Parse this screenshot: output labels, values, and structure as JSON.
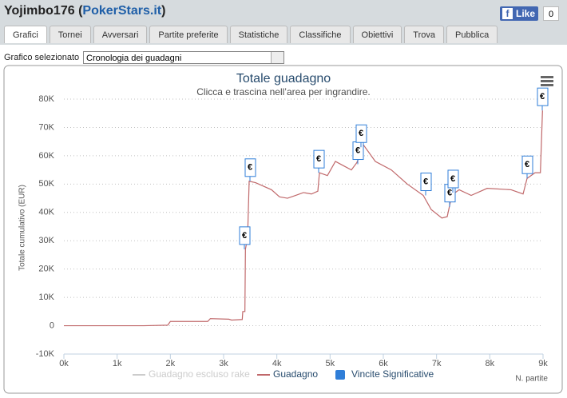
{
  "header": {
    "user": "Yojimbo176",
    "site": "PokerStars.it",
    "like": "Like",
    "like_count": "0"
  },
  "tabs": [
    "Grafici",
    "Tornei",
    "Avversari",
    "Partite preferite",
    "Statistiche",
    "Classifiche",
    "Obiettivi",
    "Trova",
    "Pubblica"
  ],
  "selector": {
    "label": "Grafico selezionato",
    "value": "Cronologia dei guadagni"
  },
  "chart_data": {
    "type": "line",
    "title": "Totale guadagno",
    "subtitle": "Clicca e trascina nell’area per ingrandire.",
    "y_label": "Totale cumulativo (EUR)",
    "x_label": "N. partite",
    "grid": true,
    "xlim": [
      0,
      9000
    ],
    "xticks": [
      {
        "value": 0,
        "label": "0k"
      },
      {
        "value": 1000,
        "label": "1k"
      },
      {
        "value": 2000,
        "label": "2k"
      },
      {
        "value": 3000,
        "label": "3k"
      },
      {
        "value": 4000,
        "label": "4k"
      },
      {
        "value": 5000,
        "label": "5k"
      },
      {
        "value": 6000,
        "label": "6k"
      },
      {
        "value": 7000,
        "label": "7k"
      },
      {
        "value": 8000,
        "label": "8k"
      },
      {
        "value": 9000,
        "label": "9k"
      }
    ],
    "ylim": [
      -10000,
      80000
    ],
    "yticks": [
      {
        "value": -10000,
        "label": "-10K"
      },
      0,
      {
        "value": 10000,
        "label": "10K"
      },
      {
        "value": 20000,
        "label": "20K"
      },
      {
        "value": 30000,
        "label": "30K"
      },
      {
        "value": 40000,
        "label": "40K"
      },
      {
        "value": 50000,
        "label": "50K"
      },
      {
        "value": 60000,
        "label": "60K"
      },
      {
        "value": 70000,
        "label": "70K"
      },
      {
        "value": 80000,
        "label": "80K"
      }
    ],
    "series": [
      {
        "name": "Guadagno escluso rake",
        "color": "#cccccc",
        "visible": false
      },
      {
        "name": "Guadagno",
        "color": "#c0686a",
        "x": [
          0,
          1500,
          1950,
          2000,
          2700,
          2750,
          3100,
          3150,
          3350,
          3360,
          3400,
          3410,
          3450,
          3480,
          3600,
          3900,
          4050,
          4200,
          4350,
          4500,
          4650,
          4770,
          4800,
          4950,
          5100,
          5250,
          5400,
          5500,
          5560,
          5620,
          5850,
          6150,
          6450,
          6750,
          6900,
          7100,
          7200,
          7275,
          7350,
          7425,
          7650,
          7950,
          8400,
          8625,
          8700,
          8850,
          8950,
          8990
        ],
        "values": [
          0,
          0,
          200,
          1500,
          1500,
          2500,
          2300,
          2000,
          2200,
          5000,
          5000,
          27000,
          31000,
          51000,
          50500,
          48000,
          45500,
          45000,
          46000,
          47000,
          46500,
          47500,
          54000,
          53000,
          58000,
          56500,
          55000,
          57500,
          60000,
          64000,
          58000,
          55000,
          50000,
          46000,
          41000,
          38000,
          38500,
          45000,
          47000,
          48000,
          46000,
          48500,
          48000,
          46500,
          52000,
          54000,
          54000,
          76000
        ]
      },
      {
        "name": "Vincite Significative",
        "color": "#2f7ed8",
        "type": "flags",
        "marker_label": "€",
        "x": [
          3390,
          3495,
          4785,
          5520,
          5580,
          6795,
          7245,
          7305,
          8700,
          8985
        ],
        "values": [
          27000,
          51000,
          54000,
          57000,
          63000,
          46000,
          42000,
          47000,
          52000,
          76000
        ]
      }
    ]
  }
}
